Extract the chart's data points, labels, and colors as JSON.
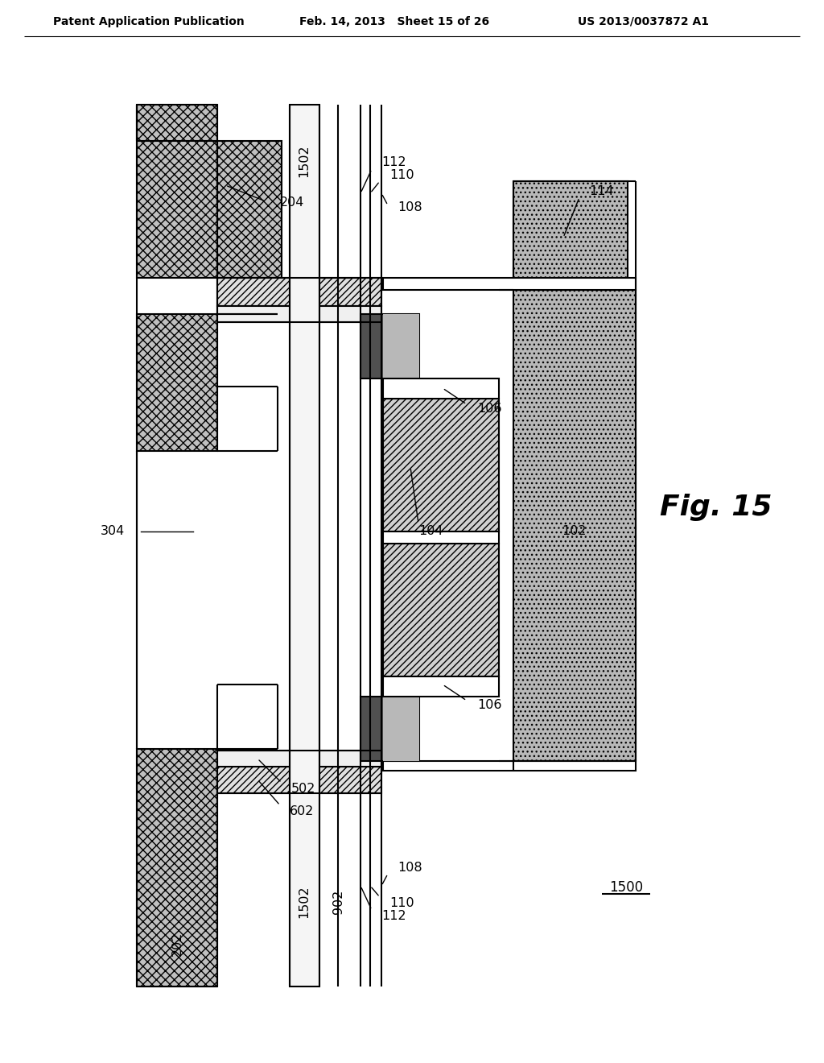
{
  "title_left": "Patent Application Publication",
  "title_mid": "Feb. 14, 2013   Sheet 15 of 26",
  "title_right": "US 2013/0037872 A1",
  "fig_label": "Fig. 15",
  "fig_number": "1500",
  "background_color": "#ffffff",
  "col_wavy": "#c0c0c0",
  "col_diag": "#d8d8d8",
  "col_dark": "#505050",
  "col_dotted": "#b8b8b8",
  "col_white": "#ffffff",
  "col_plain": "#e8e8e8"
}
